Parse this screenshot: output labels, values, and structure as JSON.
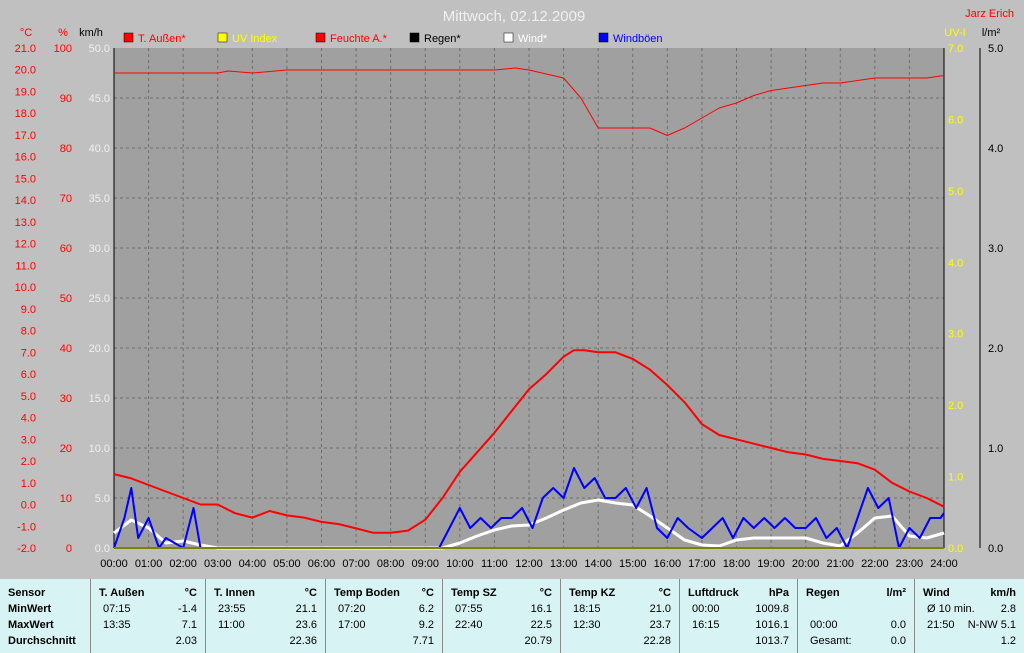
{
  "chart_data": {
    "type": "line",
    "title": "Mittwoch, 02.12.2009",
    "author": "Jarz Erich",
    "axis_units": {
      "temp": "°C",
      "humidity": "%",
      "wind": "km/h",
      "uv": "UV-I",
      "rain": "l/m²"
    },
    "x_ticks": [
      "00:00",
      "01:00",
      "02:00",
      "03:00",
      "04:00",
      "05:00",
      "06:00",
      "07:00",
      "08:00",
      "09:00",
      "10:00",
      "11:00",
      "12:00",
      "13:00",
      "14:00",
      "15:00",
      "16:00",
      "17:00",
      "18:00",
      "19:00",
      "20:00",
      "21:00",
      "22:00",
      "23:00",
      "24:00"
    ],
    "temp_ticks": [
      "21.0",
      "20.0",
      "19.0",
      "18.0",
      "17.0",
      "16.0",
      "15.0",
      "14.0",
      "13.0",
      "12.0",
      "11.0",
      "10.0",
      "9.0",
      "8.0",
      "7.0",
      "6.0",
      "5.0",
      "4.0",
      "3.0",
      "2.0",
      "1.0",
      "0.0",
      "-1.0",
      "-2.0"
    ],
    "hum_ticks": [
      "100",
      "90",
      "80",
      "70",
      "60",
      "50",
      "40",
      "30",
      "20",
      "10",
      "0"
    ],
    "wind_ticks": [
      "50.0",
      "45.0",
      "40.0",
      "35.0",
      "30.0",
      "25.0",
      "20.0",
      "15.0",
      "10.0",
      "5.0",
      "0.0"
    ],
    "uv_ticks": [
      "7.0",
      "6.0",
      "5.0",
      "4.0",
      "3.0",
      "2.0",
      "1.0",
      "0.0"
    ],
    "rain_ticks": [
      "5.0",
      "4.0",
      "3.0",
      "2.0",
      "1.0",
      "0.0"
    ],
    "ranges": {
      "temp": [
        -2,
        21
      ],
      "humidity": [
        0,
        100
      ],
      "wind": [
        0,
        50
      ],
      "uv": [
        0,
        7
      ],
      "rain": [
        0,
        5
      ]
    },
    "legend": [
      {
        "name": "T. Außen*",
        "color": "#ff0000"
      },
      {
        "name": "UV Index",
        "color": "#ffff00"
      },
      {
        "name": "Feuchte A.*",
        "color": "#ff0000"
      },
      {
        "name": "Regen*",
        "color": "#000000"
      },
      {
        "name": "Wind*",
        "color": "#ffffff"
      },
      {
        "name": "Windböen",
        "color": "#0000ff"
      }
    ],
    "series": [
      {
        "name": "T. Außen*",
        "axis": "temp",
        "color": "#ff0000",
        "x": [
          0,
          0.5,
          1,
          1.5,
          2,
          2.5,
          3,
          3.5,
          4,
          4.5,
          5,
          5.5,
          6,
          6.5,
          7,
          7.5,
          8,
          8.5,
          9,
          9.5,
          10,
          10.5,
          11,
          11.5,
          12,
          12.5,
          13,
          13.3,
          13.6,
          14,
          14.5,
          15,
          15.5,
          16,
          16.5,
          17,
          17.5,
          18,
          18.5,
          19,
          19.5,
          20,
          20.5,
          21,
          21.5,
          22,
          22.5,
          23,
          23.5,
          24
        ],
        "y": [
          1.4,
          1.2,
          0.9,
          0.6,
          0.3,
          0,
          0,
          -0.4,
          -0.6,
          -0.3,
          -0.5,
          -0.6,
          -0.8,
          -0.9,
          -1.1,
          -1.3,
          -1.3,
          -1.2,
          -0.7,
          0.3,
          1.5,
          2.4,
          3.3,
          4.3,
          5.3,
          6.0,
          6.8,
          7.1,
          7.1,
          7.0,
          7.0,
          6.7,
          6.2,
          5.5,
          4.7,
          3.7,
          3.2,
          3.0,
          2.8,
          2.6,
          2.4,
          2.3,
          2.1,
          2.0,
          1.9,
          1.6,
          1.0,
          0.6,
          0.3,
          -0.1
        ]
      },
      {
        "name": "Feuchte A.*",
        "axis": "humidity",
        "color": "#ff0000",
        "x": [
          0,
          1,
          2,
          3,
          3.3,
          4,
          5,
          6,
          7,
          8,
          9,
          10,
          11,
          11.6,
          12,
          13,
          13.5,
          14,
          14.5,
          15,
          15.5,
          16,
          16.5,
          17,
          17.5,
          18,
          18.5,
          19,
          19.5,
          20,
          20.5,
          21,
          21.5,
          22,
          22.5,
          23,
          23.5,
          24
        ],
        "y": [
          95,
          95,
          95,
          95,
          95.4,
          95,
          95.6,
          95.6,
          95.6,
          95.6,
          95.6,
          95.6,
          95.6,
          96,
          95.6,
          94,
          90,
          84,
          84,
          84,
          84,
          82.5,
          84,
          86,
          88,
          89,
          90.5,
          91.5,
          92,
          92.5,
          93,
          93,
          93.5,
          94,
          94,
          94,
          94,
          94.5
        ]
      },
      {
        "name": "Wind*",
        "axis": "wind",
        "color": "#ffffff",
        "x": [
          0,
          0.5,
          1,
          1.5,
          2,
          2.5,
          3,
          4,
          5,
          6,
          7,
          8,
          9,
          9.5,
          10,
          10.5,
          11,
          11.5,
          12,
          12.5,
          13,
          13.5,
          14,
          14.5,
          15,
          15.5,
          16,
          16.5,
          17,
          17.5,
          18,
          18.5,
          19,
          19.5,
          20,
          20.5,
          21,
          21.5,
          22,
          22.5,
          23,
          23.5,
          24
        ],
        "y": [
          1.5,
          2.8,
          2,
          0.5,
          0.7,
          0.3,
          0,
          0,
          0,
          0,
          0,
          0,
          0,
          0,
          0.5,
          1.2,
          1.8,
          2.2,
          2.3,
          3,
          3.8,
          4.5,
          4.8,
          4.5,
          4.3,
          3.2,
          2,
          0.8,
          0.3,
          0.2,
          0.8,
          1,
          1,
          1,
          1,
          0.5,
          0.2,
          1.5,
          3,
          3.2,
          1.2,
          1,
          1.5
        ]
      },
      {
        "name": "Windböen",
        "axis": "wind",
        "color": "#0000ff",
        "x": [
          0,
          0.3,
          0.5,
          0.7,
          1,
          1.3,
          1.5,
          2,
          2.3,
          2.5,
          9.4,
          9.7,
          10,
          10.3,
          10.6,
          10.9,
          11.2,
          11.5,
          11.8,
          12.1,
          12.4,
          12.7,
          13,
          13.3,
          13.6,
          13.9,
          14.2,
          14.5,
          14.8,
          15.1,
          15.4,
          15.7,
          16,
          16.3,
          16.6,
          17,
          17.3,
          17.6,
          17.9,
          18.2,
          18.5,
          18.8,
          19.1,
          19.4,
          19.7,
          20,
          20.3,
          20.6,
          20.9,
          21.2,
          21.5,
          21.8,
          22.1,
          22.4,
          22.7,
          23,
          23.3,
          23.6,
          23.9,
          24
        ],
        "y": [
          0,
          3,
          6,
          1,
          3,
          0,
          1,
          0,
          4,
          0,
          0,
          2,
          4,
          2,
          3,
          2,
          3,
          3,
          4,
          2,
          5,
          6,
          5,
          8,
          6,
          7,
          5,
          5,
          6,
          4,
          6,
          2,
          1,
          3,
          2,
          1,
          2,
          3,
          1,
          3,
          2,
          3,
          2,
          3,
          2,
          2,
          3,
          1,
          2,
          0,
          3,
          6,
          4,
          5,
          0,
          2,
          1,
          3,
          3,
          3.5
        ]
      },
      {
        "name": "UV Index",
        "axis": "uv",
        "color": "#ffff00",
        "x": [
          0,
          24
        ],
        "y": [
          0,
          0
        ]
      },
      {
        "name": "Regen*",
        "axis": "rain",
        "color": "#000000",
        "x": [
          0,
          24
        ],
        "y": [
          0,
          0
        ]
      }
    ]
  },
  "stats": {
    "rowlabels": {
      "title": "Sensor",
      "min": "MinWert",
      "max": "MaxWert",
      "avg": "Durchschnitt"
    },
    "columns": [
      {
        "title": "T. Außen",
        "unit": "°C",
        "min_time": "07:15",
        "min": "-1.4",
        "max_time": "13:35",
        "max": "7.1",
        "avg_label": "",
        "avg": "2.03"
      },
      {
        "title": "T. Innen",
        "unit": "°C",
        "min_time": "23:55",
        "min": "21.1",
        "max_time": "11:00",
        "max": "23.6",
        "avg_label": "",
        "avg": "22.36"
      },
      {
        "title": "Temp Boden",
        "unit": "°C",
        "min_time": "07:20",
        "min": "6.2",
        "max_time": "17:00",
        "max": "9.2",
        "avg_label": "",
        "avg": "7.71"
      },
      {
        "title": "Temp SZ",
        "unit": "°C",
        "min_time": "07:55",
        "min": "16.1",
        "max_time": "22:40",
        "max": "22.5",
        "avg_label": "",
        "avg": "20.79"
      },
      {
        "title": "Temp KZ",
        "unit": "°C",
        "min_time": "18:15",
        "min": "21.0",
        "max_time": "12:30",
        "max": "23.7",
        "avg_label": "",
        "avg": "22.28"
      },
      {
        "title": "Luftdruck",
        "unit": "hPa",
        "min_time": "00:00",
        "min": "1009.8",
        "max_time": "16:15",
        "max": "1016.1",
        "avg_label": "",
        "avg": "1013.7"
      },
      {
        "title": "Regen",
        "unit": "l/m²",
        "min_time": "",
        "min": "",
        "max_time": "00:00",
        "max": "0.0",
        "avg_label": "Gesamt:",
        "avg": "0.0"
      },
      {
        "title": "Wind",
        "unit": "km/h",
        "min_time": "Ø 10 min.",
        "min": "2.8",
        "max_time": "21:50",
        "max": "N-NW 5.1",
        "avg_label": "",
        "avg": "1.2"
      }
    ]
  }
}
